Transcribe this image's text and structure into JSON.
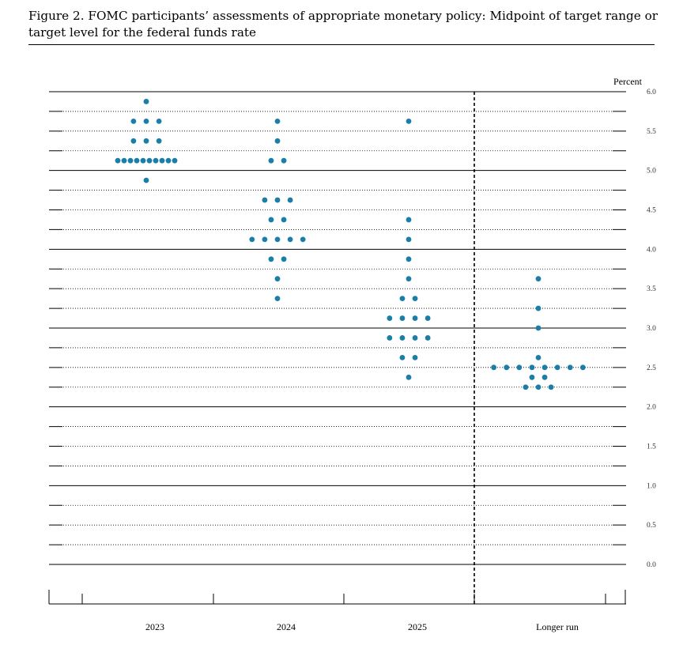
{
  "figure": {
    "title": "Figure 2.  FOMC participants’ assessments of appropriate monetary policy: Midpoint of target range or target level for the federal funds rate"
  },
  "colors": {
    "dot": "#1a7ea6",
    "axis": "#000000"
  },
  "chart_data": {
    "type": "scatter",
    "ylabel": "Percent",
    "ylim": [
      0.0,
      6.0
    ],
    "y_ticks": [
      "0.0",
      "0.5",
      "1.0",
      "1.5",
      "2.0",
      "2.5",
      "3.0",
      "3.5",
      "4.0",
      "4.5",
      "5.0",
      "5.5",
      "6.0"
    ],
    "categories": [
      "2023",
      "2024",
      "2025",
      "Longer run"
    ],
    "grid": true,
    "series": [
      {
        "category": "2023",
        "points": [
          {
            "y": 5.875,
            "count": 1
          },
          {
            "y": 5.625,
            "count": 3
          },
          {
            "y": 5.375,
            "count": 3
          },
          {
            "y": 5.125,
            "count": 10
          },
          {
            "y": 4.875,
            "count": 1
          }
        ]
      },
      {
        "category": "2024",
        "points": [
          {
            "y": 5.625,
            "count": 1
          },
          {
            "y": 5.375,
            "count": 1
          },
          {
            "y": 5.125,
            "count": 2
          },
          {
            "y": 4.625,
            "count": 3
          },
          {
            "y": 4.375,
            "count": 2
          },
          {
            "y": 4.125,
            "count": 5
          },
          {
            "y": 3.875,
            "count": 2
          },
          {
            "y": 3.625,
            "count": 1
          },
          {
            "y": 3.375,
            "count": 1
          }
        ]
      },
      {
        "category": "2025",
        "points": [
          {
            "y": 5.625,
            "count": 1
          },
          {
            "y": 4.375,
            "count": 1
          },
          {
            "y": 4.125,
            "count": 1
          },
          {
            "y": 3.875,
            "count": 1
          },
          {
            "y": 3.625,
            "count": 1
          },
          {
            "y": 3.375,
            "count": 2
          },
          {
            "y": 3.125,
            "count": 4
          },
          {
            "y": 2.875,
            "count": 4
          },
          {
            "y": 2.625,
            "count": 2
          },
          {
            "y": 2.375,
            "count": 1
          }
        ]
      },
      {
        "category": "Longer run",
        "points": [
          {
            "y": 3.625,
            "count": 1
          },
          {
            "y": 3.25,
            "count": 1
          },
          {
            "y": 3.0,
            "count": 1
          },
          {
            "y": 2.625,
            "count": 1
          },
          {
            "y": 2.5,
            "count": 8
          },
          {
            "y": 2.375,
            "count": 2
          },
          {
            "y": 2.25,
            "count": 3
          }
        ]
      }
    ]
  }
}
